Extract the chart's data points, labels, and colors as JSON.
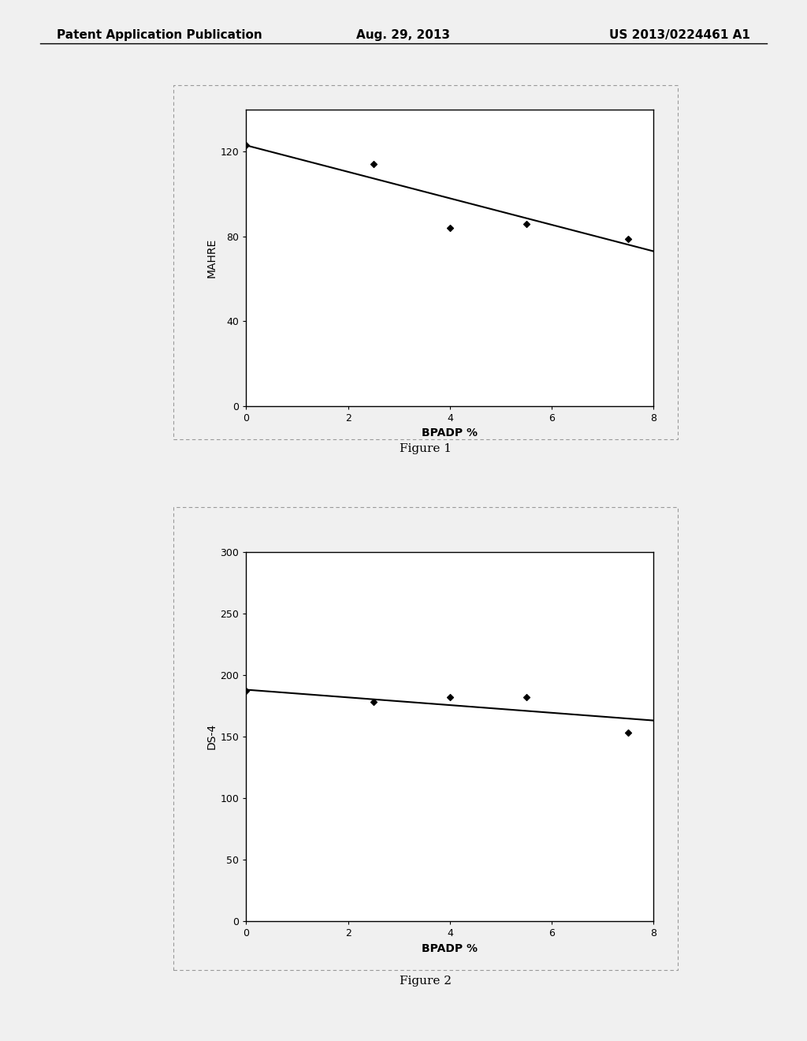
{
  "fig1": {
    "scatter_x": [
      0,
      2.5,
      4,
      5.5,
      7.5
    ],
    "scatter_y": [
      123,
      114,
      84,
      86,
      79
    ],
    "trendline_x": [
      0,
      8
    ],
    "trendline_y": [
      123,
      73
    ],
    "xlabel": "BPADP %",
    "ylabel": "MAHRE",
    "xlim": [
      0,
      8
    ],
    "ylim": [
      0,
      140
    ],
    "yticks": [
      0,
      40,
      80,
      120
    ],
    "xticks": [
      0,
      2,
      4,
      6,
      8
    ],
    "caption": "Figure 1"
  },
  "fig2": {
    "scatter_x": [
      0,
      2.5,
      4,
      5.5,
      7.5
    ],
    "scatter_y": [
      187,
      178,
      182,
      182,
      153
    ],
    "trendline_x": [
      0,
      8
    ],
    "trendline_y": [
      188,
      163
    ],
    "xlabel": "BPADP %",
    "ylabel": "DS-4",
    "xlim": [
      0,
      8
    ],
    "ylim": [
      0,
      300
    ],
    "yticks": [
      0,
      50,
      100,
      150,
      200,
      250,
      300
    ],
    "xticks": [
      0,
      2,
      4,
      6,
      8
    ],
    "caption": "Figure 2"
  },
  "header_left": "Patent Application Publication",
  "header_center": "Aug. 29, 2013",
  "header_right": "US 2013/0224461 A1",
  "background_color": "#f0f0f0",
  "plot_bg_color": "#ffffff",
  "line_color": "#000000",
  "scatter_color": "#000000",
  "marker": "D",
  "marker_size": 4
}
